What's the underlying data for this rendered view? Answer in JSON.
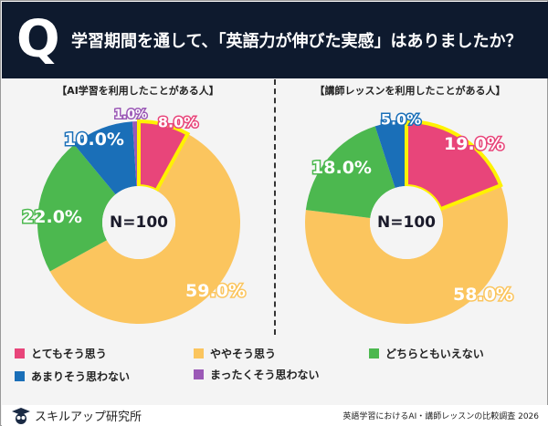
{
  "header": {
    "q": "Q",
    "title": "学習期間を通して、「英語力が伸びた実感」はありましたか？"
  },
  "colors": {
    "とてもそう思う": "#e8457a",
    "ややそう思う": "#fbc55e",
    "どちらともいえない": "#4cb84f",
    "あまりそう思わない": "#1a6fb8",
    "まったくそう思わない": "#9b59b6",
    "highlight": "#fff200"
  },
  "chart_data": [
    {
      "type": "pie",
      "donut": true,
      "title": "【AI学習を利用したことがある人】",
      "center_label": "N=100",
      "categories": [
        "とてもそう思う",
        "ややそう思う",
        "どちらともいえない",
        "あまりそう思わない",
        "まったくそう思わない"
      ],
      "values": [
        8.0,
        59.0,
        22.0,
        10.0,
        1.0
      ],
      "highlight": "とてもそう思う"
    },
    {
      "type": "pie",
      "donut": true,
      "title": "【講師レッスンを利用したことがある人】",
      "center_label": "N=100",
      "categories": [
        "とてもそう思う",
        "ややそう思う",
        "どちらともいえない",
        "あまりそう思わない",
        "まったくそう思わない"
      ],
      "values": [
        19.0,
        58.0,
        18.0,
        5.0,
        0.0
      ],
      "highlight": "とてもそう思う"
    }
  ],
  "legend": [
    "とてもそう思う",
    "ややそう思う",
    "どちらともいえない",
    "あまりそう思わない",
    "まったくそう思わない"
  ],
  "footer": {
    "brand": "スキルアップ研究所",
    "credit": "英語学習におけるAI・講師レッスンの比較調査 2026"
  }
}
